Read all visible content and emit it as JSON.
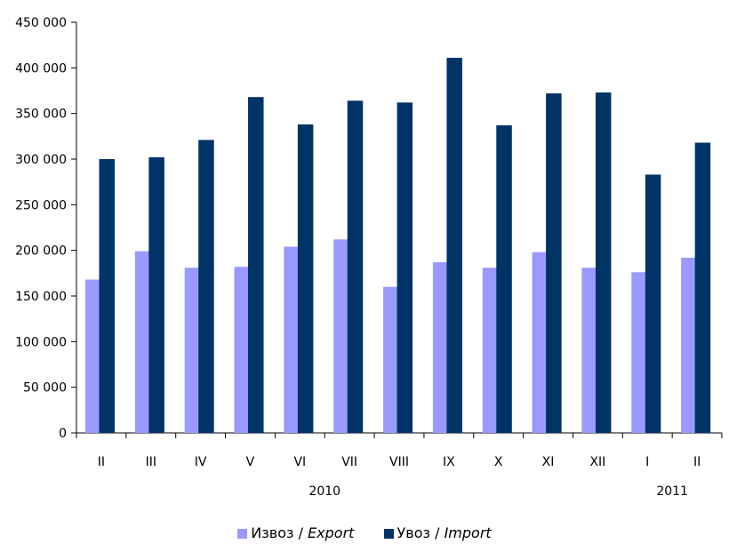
{
  "chart_data": {
    "type": "bar",
    "categories": [
      "II",
      "III",
      "IV",
      "V",
      "VI",
      "VII",
      "VIII",
      "IX",
      "X",
      "XI",
      "XII",
      "I",
      "II"
    ],
    "year_labels": [
      {
        "text": "2010",
        "category_index": 4.5
      },
      {
        "text": "2011",
        "category_index": 11.5
      }
    ],
    "series": [
      {
        "name": "Извоз / Export",
        "name_main": "Извоз",
        "name_italic": "Export",
        "color": "#9999ff",
        "values": [
          168000,
          199000,
          181000,
          182000,
          204000,
          212000,
          160000,
          187000,
          181000,
          198000,
          181000,
          176000,
          192000
        ]
      },
      {
        "name": "Увоз / Import",
        "name_main": "Увоз",
        "name_italic": "Import",
        "color": "#003366",
        "values": [
          300000,
          302000,
          321000,
          368000,
          338000,
          364000,
          362000,
          411000,
          337000,
          372000,
          373000,
          283000,
          318000
        ]
      }
    ],
    "y_ticks": [
      "0",
      "50 000",
      "100 000",
      "150 000",
      "200 000",
      "250 000",
      "300 000",
      "350 000",
      "400 000",
      "450 000"
    ],
    "ylim": [
      0,
      450000
    ],
    "grid": false,
    "legend_position": "bottom"
  }
}
